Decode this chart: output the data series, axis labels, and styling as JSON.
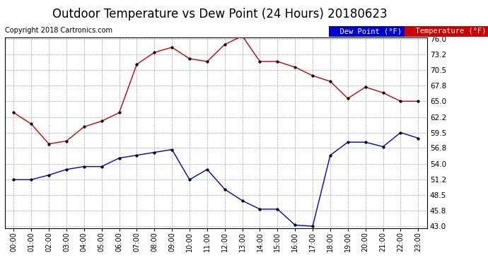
{
  "title": "Outdoor Temperature vs Dew Point (24 Hours) 20180623",
  "copyright": "Copyright 2018 Cartronics.com",
  "hours": [
    "00:00",
    "01:00",
    "02:00",
    "03:00",
    "04:00",
    "05:00",
    "06:00",
    "07:00",
    "08:00",
    "09:00",
    "10:00",
    "11:00",
    "12:00",
    "13:00",
    "14:00",
    "15:00",
    "16:00",
    "17:00",
    "18:00",
    "19:00",
    "20:00",
    "21:00",
    "22:00",
    "23:00"
  ],
  "temperature": [
    63.0,
    61.0,
    57.5,
    58.0,
    60.5,
    61.5,
    63.0,
    71.5,
    73.6,
    74.5,
    72.5,
    72.0,
    75.0,
    76.5,
    72.0,
    72.0,
    71.0,
    69.5,
    68.5,
    65.5,
    67.5,
    66.5,
    65.0,
    65.0
  ],
  "dew_point": [
    51.2,
    51.2,
    52.0,
    53.0,
    53.5,
    53.5,
    55.0,
    55.5,
    56.0,
    56.5,
    51.2,
    53.0,
    49.5,
    47.5,
    46.0,
    46.0,
    43.2,
    43.0,
    55.5,
    57.8,
    57.8,
    57.0,
    59.5,
    58.5
  ],
  "temp_color": "#cc0000",
  "dew_color": "#0000cc",
  "ylim_min": 43.0,
  "ylim_max": 76.0,
  "yticks": [
    43.0,
    45.8,
    48.5,
    51.2,
    54.0,
    56.8,
    59.5,
    62.2,
    65.0,
    67.8,
    70.5,
    73.2,
    76.0
  ],
  "background_color": "#ffffff",
  "plot_bg_color": "#ffffff",
  "grid_color": "#aaaaaa",
  "title_fontsize": 12,
  "copyright_fontsize": 7,
  "legend_dew_label": "Dew Point (°F)",
  "legend_temp_label": "Temperature (°F)",
  "legend_fontsize": 7.5
}
